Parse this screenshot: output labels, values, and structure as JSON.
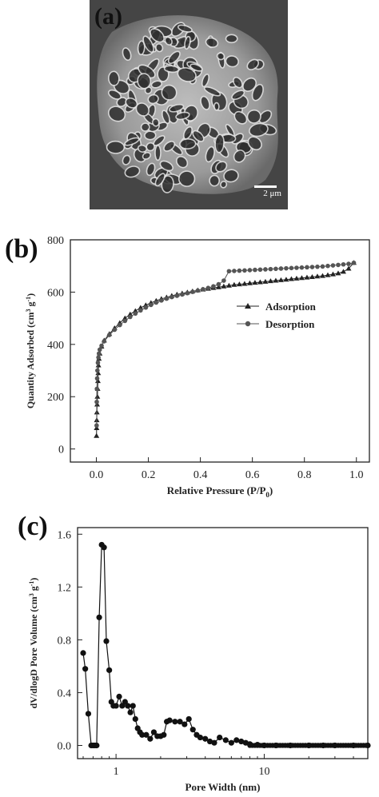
{
  "panels": {
    "a": {
      "label": "(a)",
      "scale_label": "2 μm"
    },
    "b": {
      "label": "(b)"
    },
    "c": {
      "label": "(c)"
    }
  },
  "chart_data": [
    {
      "type": "scatter",
      "xlabel": "Relative Pressure (P/P",
      "xlabel_sub": "0",
      "ylabel": "Quantity Adsorbed (cm",
      "xlim": [
        -0.1,
        1.05
      ],
      "ylim": [
        -50,
        800
      ],
      "xticks": [
        "0.0",
        "0.2",
        "0.4",
        "0.6",
        "0.8",
        "1.0"
      ],
      "xtick_values": [
        0,
        0.2,
        0.4,
        0.6,
        0.8,
        1.0
      ],
      "yticks": [
        "0",
        "200",
        "400",
        "600",
        "800"
      ],
      "ytick_values": [
        0,
        200,
        400,
        600,
        800
      ],
      "legend_position": "right",
      "series": [
        {
          "name": "Adsorption",
          "marker": "triangle",
          "x": [
            0.0005,
            0.001,
            0.0015,
            0.002,
            0.003,
            0.004,
            0.005,
            0.006,
            0.007,
            0.008,
            0.01,
            0.013,
            0.02,
            0.03,
            0.05,
            0.07,
            0.09,
            0.11,
            0.13,
            0.15,
            0.17,
            0.19,
            0.21,
            0.23,
            0.25,
            0.27,
            0.29,
            0.31,
            0.33,
            0.35,
            0.37,
            0.39,
            0.41,
            0.43,
            0.45,
            0.47,
            0.49,
            0.51,
            0.53,
            0.55,
            0.57,
            0.59,
            0.61,
            0.63,
            0.65,
            0.67,
            0.69,
            0.71,
            0.73,
            0.75,
            0.77,
            0.79,
            0.81,
            0.83,
            0.85,
            0.87,
            0.89,
            0.91,
            0.93,
            0.95,
            0.97,
            0.99
          ],
          "y": [
            50,
            80,
            110,
            140,
            170,
            200,
            230,
            260,
            290,
            320,
            345,
            365,
            392,
            415,
            440,
            462,
            482,
            500,
            515,
            528,
            540,
            550,
            559,
            567,
            574,
            580,
            586,
            591,
            595,
            599,
            603,
            607,
            610,
            613,
            616,
            619,
            622,
            625,
            628,
            630,
            632,
            634,
            636,
            638,
            640,
            642,
            644,
            646,
            648,
            650,
            652,
            654,
            656,
            658,
            660,
            662,
            665,
            668,
            672,
            678,
            690,
            712
          ]
        },
        {
          "name": "Desorption",
          "marker": "circle",
          "x": [
            0.99,
            0.97,
            0.95,
            0.93,
            0.91,
            0.89,
            0.87,
            0.85,
            0.83,
            0.81,
            0.79,
            0.77,
            0.75,
            0.73,
            0.71,
            0.69,
            0.67,
            0.65,
            0.63,
            0.61,
            0.59,
            0.57,
            0.55,
            0.53,
            0.51,
            0.49,
            0.47,
            0.45,
            0.43,
            0.41,
            0.39,
            0.37,
            0.35,
            0.33,
            0.31,
            0.29,
            0.27,
            0.25,
            0.23,
            0.21,
            0.19,
            0.17,
            0.15,
            0.13,
            0.11,
            0.09,
            0.07,
            0.05,
            0.03,
            0.02,
            0.013,
            0.01,
            0.008,
            0.006,
            0.004,
            0.003,
            0.002,
            0.0015,
            0.001
          ],
          "y": [
            712,
            708,
            706,
            704,
            702,
            700,
            698,
            697,
            696,
            695,
            694,
            693,
            692,
            691,
            690,
            689,
            688,
            687,
            686,
            685,
            684,
            683,
            682,
            681,
            680,
            644,
            630,
            622,
            616,
            611,
            606,
            601,
            596,
            591,
            586,
            581,
            575,
            568,
            560,
            551,
            541,
            530,
            518,
            505,
            490,
            474,
            456,
            436,
            412,
            395,
            380,
            365,
            350,
            330,
            300,
            270,
            230,
            180,
            90
          ]
        }
      ]
    },
    {
      "type": "scatter",
      "xlabel": "Pore Width (nm)",
      "ylabel": "dV/dlogD Pore Volume (cm",
      "xscale": "log",
      "xlim": [
        0.55,
        50
      ],
      "ylim": [
        -0.1,
        1.65
      ],
      "xticks": [
        "1",
        "10"
      ],
      "xtick_values": [
        1,
        10
      ],
      "yticks": [
        "0.0",
        "0.4",
        "0.8",
        "1.2",
        "1.6"
      ],
      "ytick_values": [
        0,
        0.4,
        0.8,
        1.2,
        1.6
      ],
      "series": [
        {
          "marker": "circle",
          "x": [
            0.6,
            0.62,
            0.65,
            0.68,
            0.7,
            0.72,
            0.74,
            0.77,
            0.8,
            0.83,
            0.86,
            0.9,
            0.93,
            0.96,
            1.0,
            1.05,
            1.1,
            1.15,
            1.2,
            1.25,
            1.3,
            1.35,
            1.4,
            1.45,
            1.5,
            1.6,
            1.7,
            1.8,
            1.9,
            2.0,
            2.1,
            2.2,
            2.3,
            2.5,
            2.7,
            2.9,
            3.1,
            3.3,
            3.5,
            3.7,
            4.0,
            4.3,
            4.6,
            5.0,
            5.5,
            6.0,
            6.5,
            7.0,
            7.5,
            8.0,
            9.0,
            10,
            12,
            15,
            20,
            25,
            30,
            40,
            50
          ],
          "y": [
            0.7,
            0.58,
            0.24,
            0,
            0,
            0,
            0,
            0.97,
            1.52,
            1.5,
            0.79,
            0.57,
            0.33,
            0.3,
            0.3,
            0.37,
            0.3,
            0.33,
            0.3,
            0.25,
            0.3,
            0.2,
            0.13,
            0.1,
            0.08,
            0.08,
            0.05,
            0.1,
            0.07,
            0.07,
            0.08,
            0.18,
            0.19,
            0.18,
            0.18,
            0.16,
            0.2,
            0.12,
            0.08,
            0.06,
            0.05,
            0.03,
            0.02,
            0.06,
            0.04,
            0.02,
            0.04,
            0.03,
            0.02,
            0.01,
            0.005,
            0,
            0,
            0,
            0,
            0,
            0,
            0,
            0
          ]
        }
      ]
    }
  ]
}
